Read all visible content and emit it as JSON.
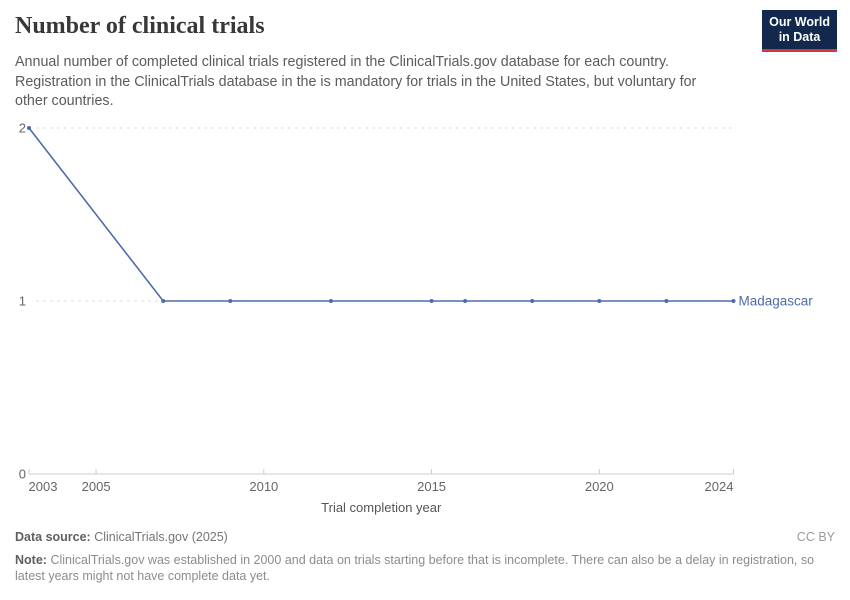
{
  "header": {
    "title": "Number of clinical trials",
    "subtitle": "Annual number of completed clinical trials registered in the ClinicalTrials.gov database for each country. Registration in the ClinicalTrials database in the is mandatory for trials in the United States, but voluntary for other countries.",
    "logo": {
      "line1": "Our World",
      "line2": "in Data"
    }
  },
  "chart_data": {
    "type": "line",
    "title": "Number of clinical trials",
    "xlabel": "Trial completion year",
    "ylabel": "",
    "x": [
      2003,
      2007,
      2009,
      2012,
      2015,
      2016,
      2018,
      2020,
      2022,
      2024
    ],
    "series": [
      {
        "name": "Madagascar",
        "color": "#4d6cab",
        "values": [
          2,
          1,
          1,
          1,
          1,
          1,
          1,
          1,
          1,
          1
        ]
      }
    ],
    "xlim": [
      2003,
      2024
    ],
    "ylim": [
      0,
      2
    ],
    "xticks": [
      2003,
      2005,
      2010,
      2015,
      2020,
      2024
    ],
    "yticks": [
      0,
      1,
      2
    ],
    "grid": "dashed-horizontal",
    "legend_position": "line-end-label",
    "marker": "dot",
    "colors": {
      "gridline": "#dddddd",
      "axis": "#cccccc",
      "tick_label": "#666666",
      "axis_title": "#555555"
    }
  },
  "footer": {
    "datasource_label": "Data source:",
    "datasource_value": "ClinicalTrials.gov (2025)",
    "license": "CC BY",
    "note_label": "Note:",
    "note_value": "ClinicalTrials.gov was established in 2000 and data on trials starting before that is incomplete. There can also be a delay in registration, so latest years might not have complete data yet."
  }
}
